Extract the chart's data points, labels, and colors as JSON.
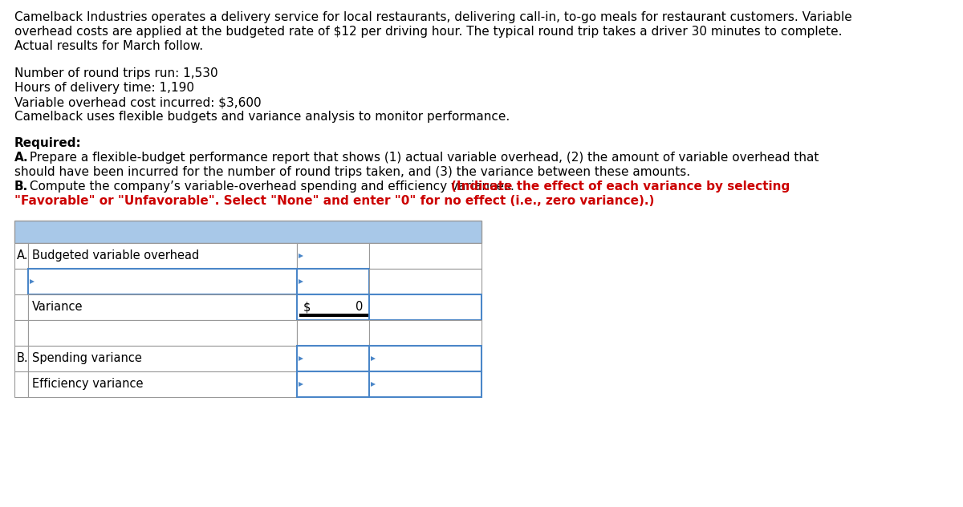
{
  "bg_color": "#ffffff",
  "text_color": "#000000",
  "red_color": "#cc0000",
  "blue_header": "#a8c8e8",
  "cell_border": "#4a86c8",
  "table_border_gray": "#999999",
  "line1": "Camelback Industries operates a delivery service for local restaurants, delivering call-in, to-go meals for restaurant customers. Variable",
  "line2": "overhead costs are applied at the budgeted rate of $12 per driving hour. The typical round trip takes a driver 30 minutes to complete.",
  "line3": "Actual results for March follow.",
  "line5": "Number of round trips run: 1,530",
  "line6": "Hours of delivery time: 1,190",
  "line7": "Variable overhead cost incurred: $3,600",
  "line8": "Camelback uses flexible budgets and variance analysis to monitor performance.",
  "required": "Required:",
  "partA_bold": "A.",
  "partA_rest": " Prepare a flexible-budget performance report that shows (1) actual variable overhead, (2) the amount of variable overhead that",
  "partA_line2": "should have been incurred for the number of round trips taken, and (3) the variance between these amounts.",
  "partB_bold": "B.",
  "partB_black": " Compute the company’s variable-overhead spending and efficiency variances. ",
  "partB_red1": "(Indicate the effect of each variance by selecting",
  "partB_red2": "\"Favorable\" or \"Unfavorable\". Select \"None\" and enter \"0\" for no effect (i.e., zero variance).)",
  "row_a_label": "A.",
  "row_a_text": "Budgeted variable overhead",
  "row_variance": "Variance",
  "variance_dollar": "$",
  "variance_value": "0",
  "row_b_label": "B.",
  "row_spending": "Spending variance",
  "row_efficiency": "Efficiency variance",
  "font_size_body": 11.0,
  "font_size_table": 10.5
}
